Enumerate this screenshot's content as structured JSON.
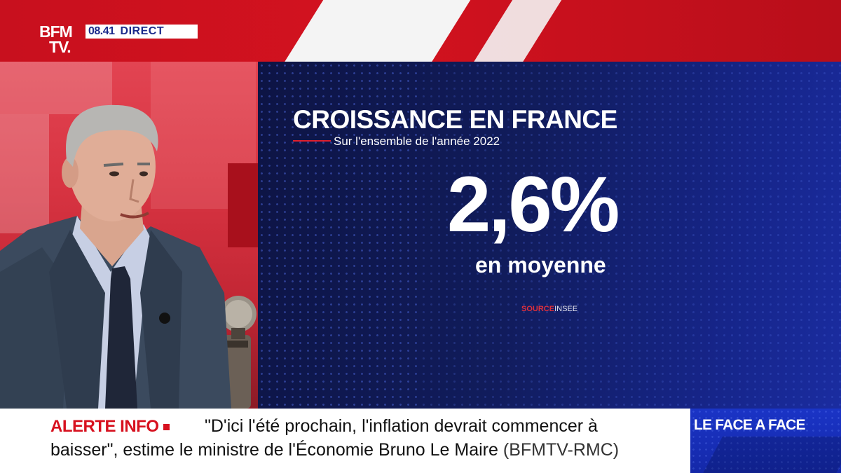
{
  "channel": {
    "logo_line1": "BFM",
    "logo_line2": "TV.",
    "time": "08.41",
    "live_label": "DIRECT"
  },
  "graphic": {
    "title": "CROISSANCE EN FRANCE",
    "subtitle": "Sur l'ensemble de l'année 2022",
    "value": "2,6%",
    "value_caption": "en moyenne",
    "source_label": "SOURCE",
    "source_value": "INSEE"
  },
  "ticker": {
    "alert_label": "ALERTE INFO",
    "line1": "\"D'ici l'été prochain, l'inflation devrait commencer à",
    "line2": "baisser\", estime le ministre de l'Économie Bruno Le Maire",
    "credit": "(BFMTV-RMC)"
  },
  "show": {
    "title": "LE FACE A FACE"
  },
  "colors": {
    "brand_red": "#d3121f",
    "brand_blue": "#1b2a8c",
    "graphic_bg": "#111c5c",
    "show_box": "#1a34c6"
  }
}
